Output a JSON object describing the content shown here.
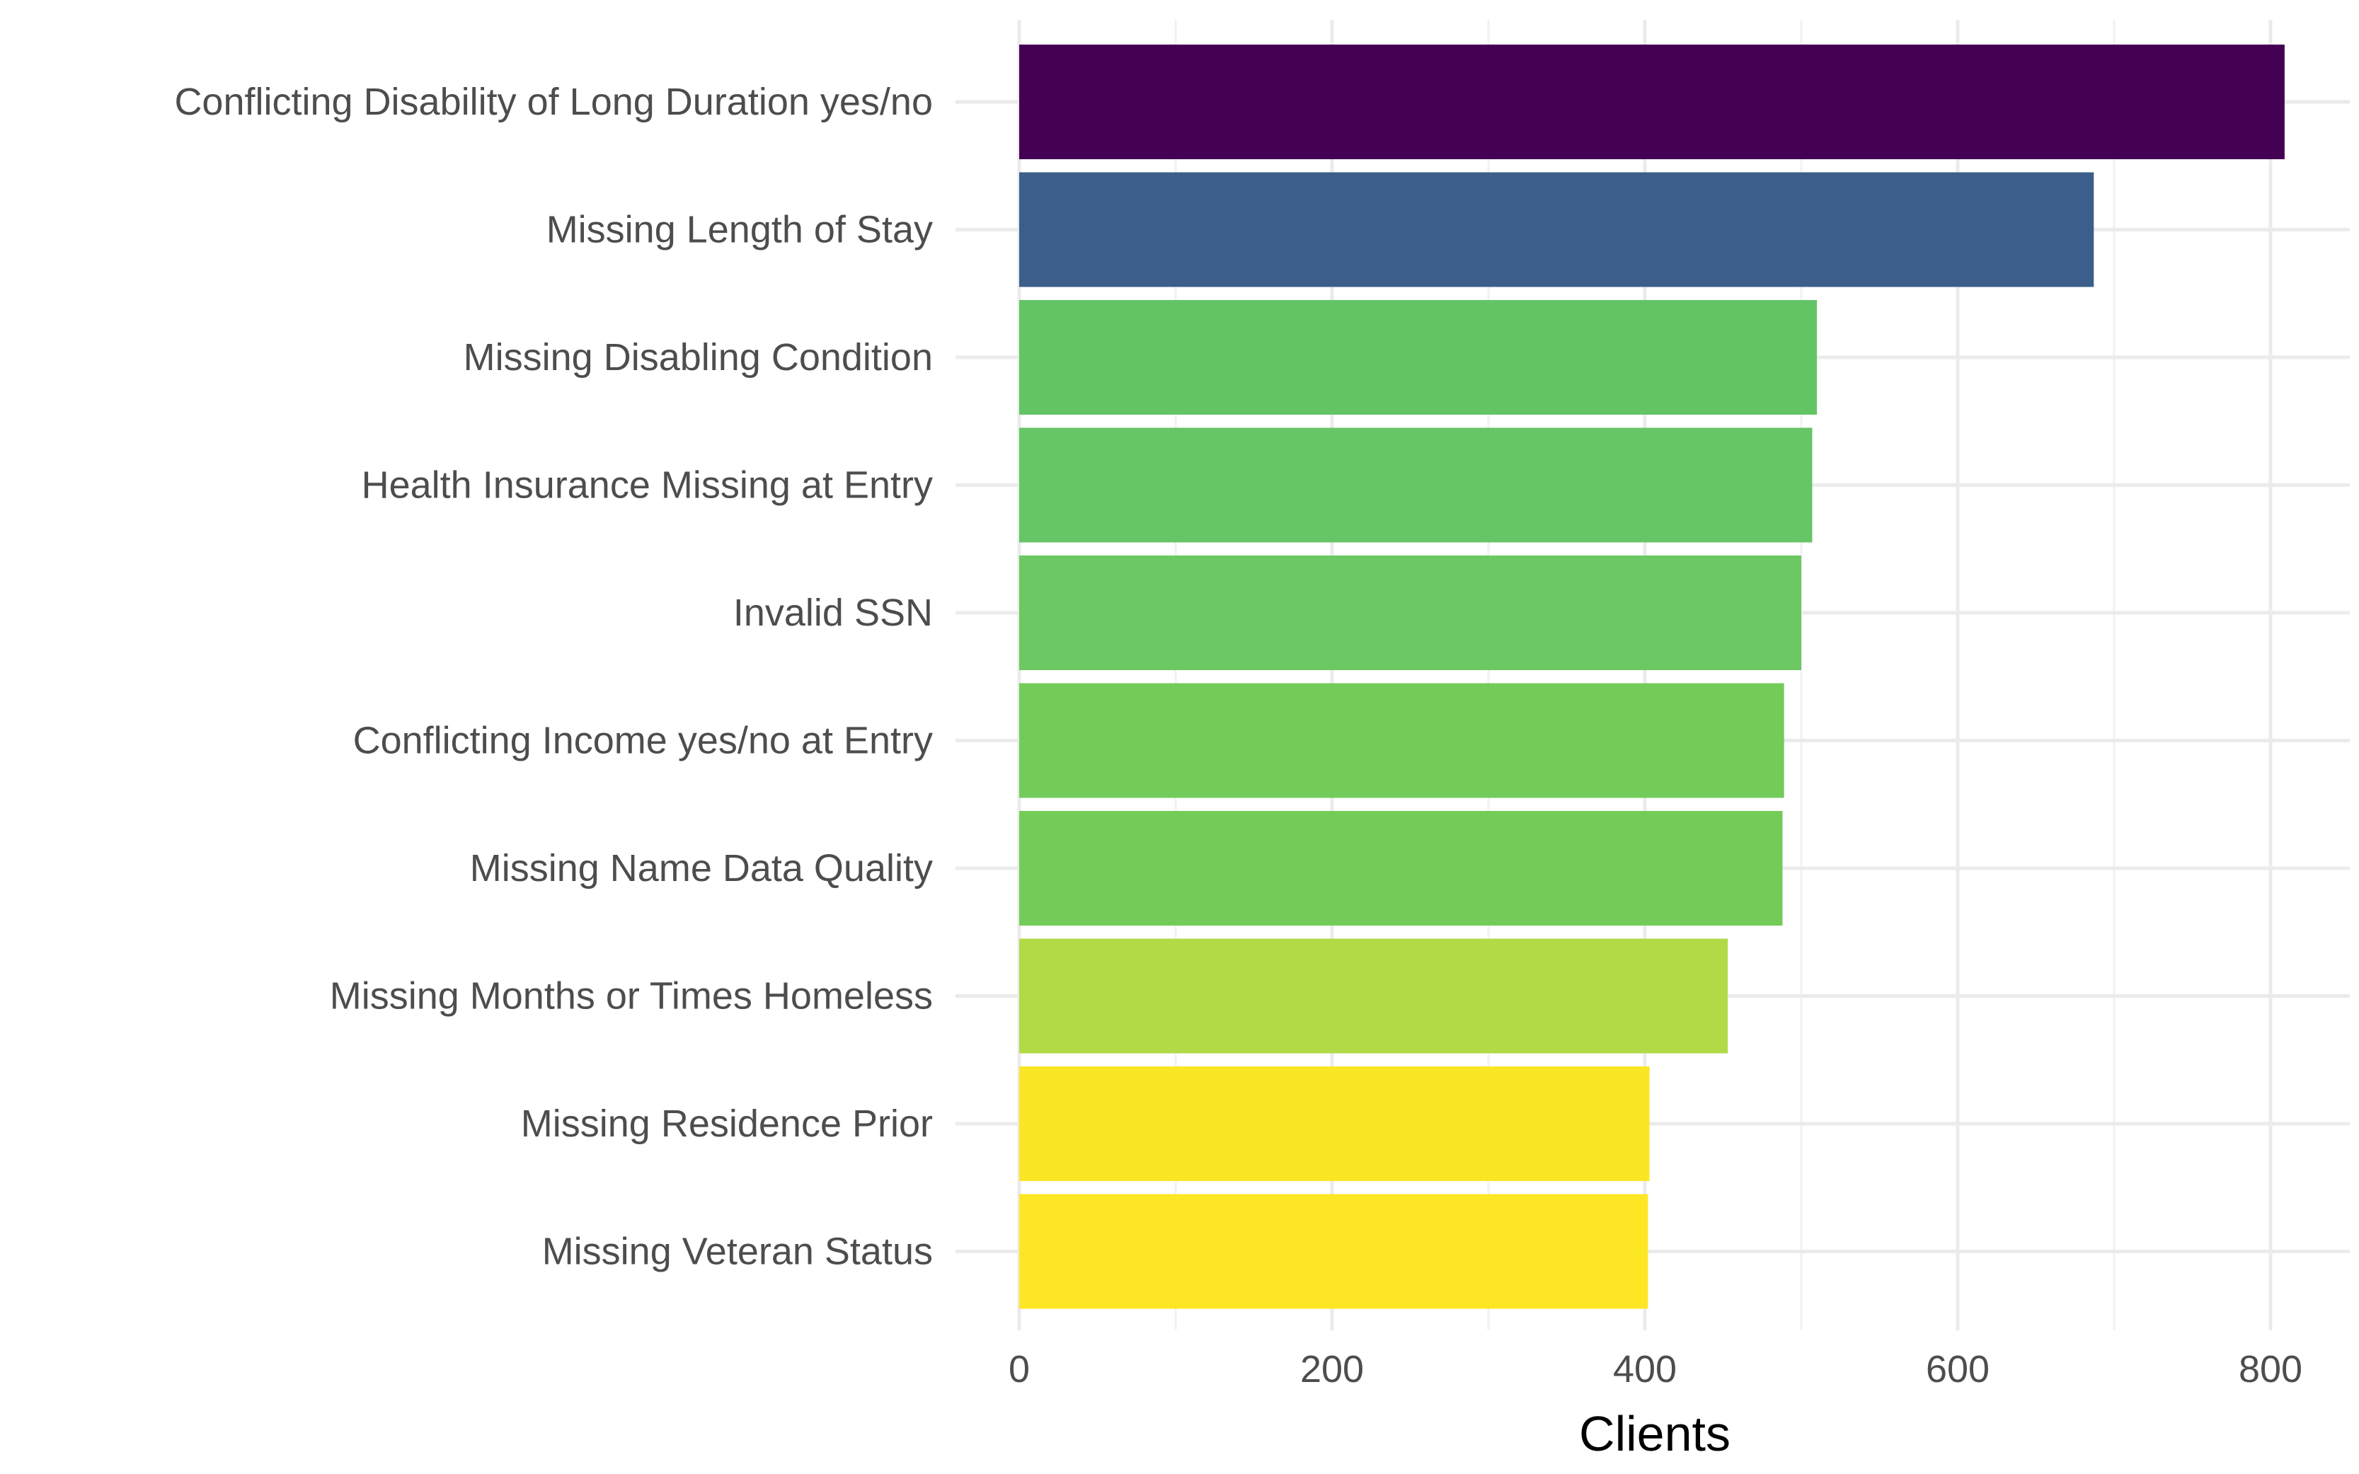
{
  "chart_data": {
    "type": "bar",
    "orientation": "horizontal",
    "title": "",
    "xlabel": "Clients",
    "ylabel": "",
    "xlim": [
      0,
      850
    ],
    "x_ticks": [
      0,
      200,
      400,
      600,
      800
    ],
    "x_minor_ticks": [
      100,
      300,
      500,
      700
    ],
    "grid": true,
    "legend": "none",
    "categories": [
      "Conflicting Disability of Long Duration yes/no",
      "Missing Length of Stay",
      "Missing Disabling Condition",
      "Health Insurance Missing at Entry",
      "Invalid SSN",
      "Conflicting Income yes/no at Entry",
      "Missing Name Data Quality",
      "Missing Months or Times Homeless",
      "Missing Residence Prior",
      "Missing Veteran Status"
    ],
    "values": [
      809,
      687,
      510,
      507,
      500,
      489,
      488,
      453,
      403,
      402
    ],
    "colors": [
      "#440154",
      "#3b5f8a",
      "#63c465",
      "#66c566",
      "#6bc862",
      "#73cb5a",
      "#74cc58",
      "#b1da46",
      "#fbe626",
      "#fde725"
    ]
  }
}
